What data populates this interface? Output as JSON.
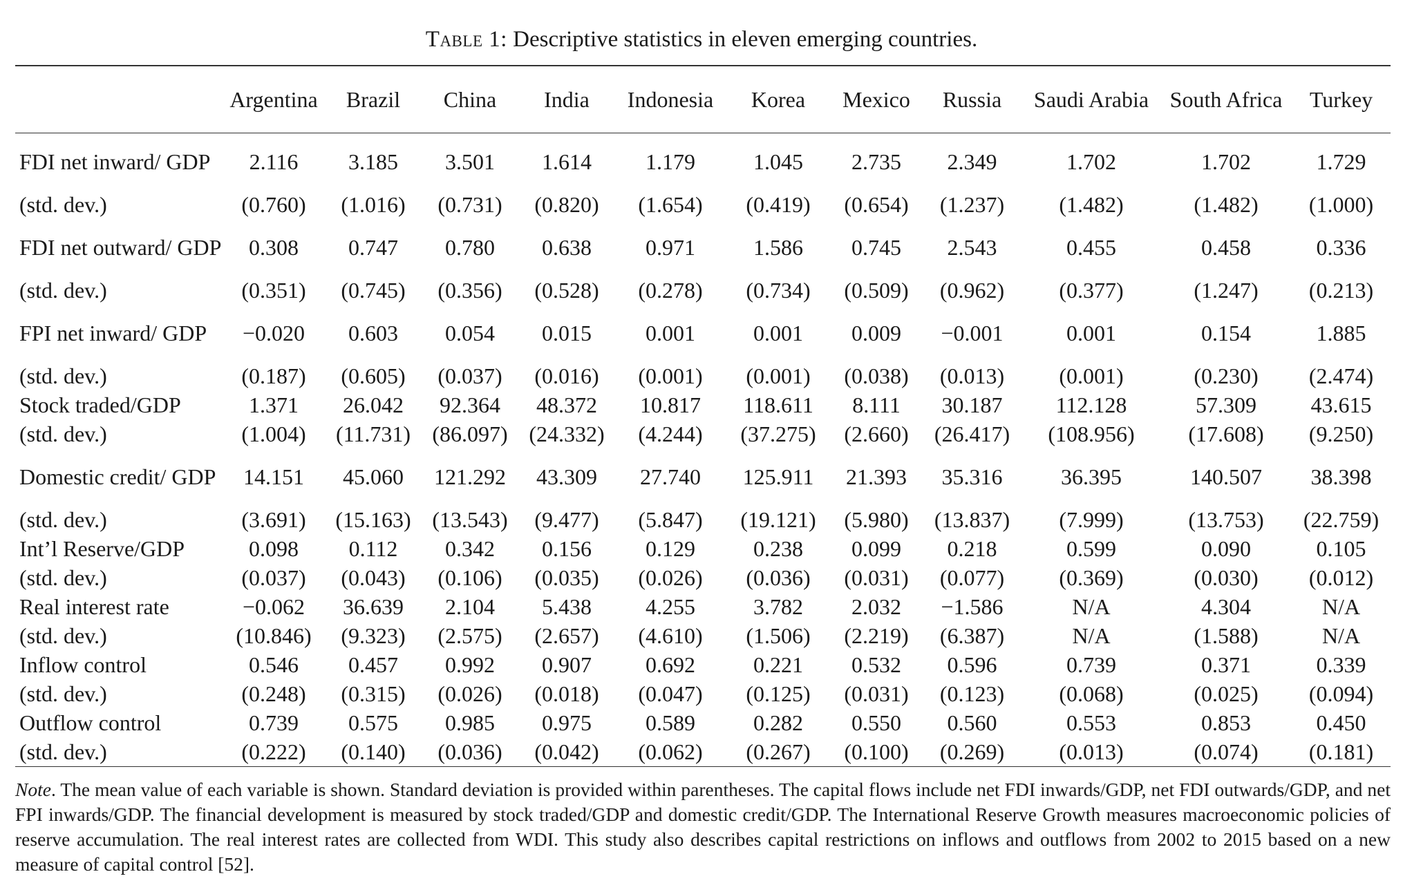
{
  "caption": {
    "label": "Table 1:",
    "text": "Descriptive statistics in eleven emerging countries."
  },
  "table": {
    "columns": [
      "",
      "Argentina",
      "Brazil",
      "China",
      "India",
      "Indonesia",
      "Korea",
      "Mexico",
      "Russia",
      "Saudi Arabia",
      "South Africa",
      "Turkey"
    ],
    "rows": [
      {
        "label": "FDI net inward/ GDP",
        "values": [
          "2.116",
          "3.185",
          "3.501",
          "1.614",
          "1.179",
          "1.045",
          "2.735",
          "2.349",
          "1.702",
          "1.702",
          "1.729"
        ]
      },
      {
        "label": "(std. dev.)",
        "values": [
          "(0.760)",
          "(1.016)",
          "(0.731)",
          "(0.820)",
          "(1.654)",
          "(0.419)",
          "(0.654)",
          "(1.237)",
          "(1.482)",
          "(1.482)",
          "(1.000)"
        ]
      },
      {
        "label": "FDI net outward/ GDP",
        "values": [
          "0.308",
          "0.747",
          "0.780",
          "0.638",
          "0.971",
          "1.586",
          "0.745",
          "2.543",
          "0.455",
          "0.458",
          "0.336"
        ]
      },
      {
        "label": "(std. dev.)",
        "values": [
          "(0.351)",
          "(0.745)",
          "(0.356)",
          "(0.528)",
          "(0.278)",
          "(0.734)",
          "(0.509)",
          "(0.962)",
          "(0.377)",
          "(1.247)",
          "(0.213)"
        ]
      },
      {
        "label": "FPI net inward/ GDP",
        "values": [
          "−0.020",
          "0.603",
          "0.054",
          "0.015",
          "0.001",
          "0.001",
          "0.009",
          "−0.001",
          "0.001",
          "0.154",
          "1.885"
        ]
      },
      {
        "label": "(std. dev.)",
        "values": [
          "(0.187)",
          "(0.605)",
          "(0.037)",
          "(0.016)",
          "(0.001)",
          "(0.001)",
          "(0.038)",
          "(0.013)",
          "(0.001)",
          "(0.230)",
          "(2.474)"
        ]
      },
      {
        "label": "Stock traded/GDP",
        "values": [
          "1.371",
          "26.042",
          "92.364",
          "48.372",
          "10.817",
          "118.611",
          "8.111",
          "30.187",
          "112.128",
          "57.309",
          "43.615"
        ]
      },
      {
        "label": "(std. dev.)",
        "values": [
          "(1.004)",
          "(11.731)",
          "(86.097)",
          "(24.332)",
          "(4.244)",
          "(37.275)",
          "(2.660)",
          "(26.417)",
          "(108.956)",
          "(17.608)",
          "(9.250)"
        ]
      },
      {
        "label": "Domestic credit/ GDP",
        "values": [
          "14.151",
          "45.060",
          "121.292",
          "43.309",
          "27.740",
          "125.911",
          "21.393",
          "35.316",
          "36.395",
          "140.507",
          "38.398"
        ]
      },
      {
        "label": "(std. dev.)",
        "values": [
          "(3.691)",
          "(15.163)",
          "(13.543)",
          "(9.477)",
          "(5.847)",
          "(19.121)",
          "(5.980)",
          "(13.837)",
          "(7.999)",
          "(13.753)",
          "(22.759)"
        ]
      },
      {
        "label": "Int’l Reserve/GDP",
        "values": [
          "0.098",
          "0.112",
          "0.342",
          "0.156",
          "0.129",
          "0.238",
          "0.099",
          "0.218",
          "0.599",
          "0.090",
          "0.105"
        ]
      },
      {
        "label": "(std. dev.)",
        "values": [
          "(0.037)",
          "(0.043)",
          "(0.106)",
          "(0.035)",
          "(0.026)",
          "(0.036)",
          "(0.031)",
          "(0.077)",
          "(0.369)",
          "(0.030)",
          "(0.012)"
        ]
      },
      {
        "label": "Real interest rate",
        "values": [
          "−0.062",
          "36.639",
          "2.104",
          "5.438",
          "4.255",
          "3.782",
          "2.032",
          "−1.586",
          "N/A",
          "4.304",
          "N/A"
        ]
      },
      {
        "label": "(std. dev.)",
        "values": [
          "(10.846)",
          "(9.323)",
          "(2.575)",
          "(2.657)",
          "(4.610)",
          "(1.506)",
          "(2.219)",
          "(6.387)",
          "N/A",
          "(1.588)",
          "N/A"
        ]
      },
      {
        "label": "Inflow control",
        "values": [
          "0.546",
          "0.457",
          "0.992",
          "0.907",
          "0.692",
          "0.221",
          "0.532",
          "0.596",
          "0.739",
          "0.371",
          "0.339"
        ]
      },
      {
        "label": "(std. dev.)",
        "values": [
          "(0.248)",
          "(0.315)",
          "(0.026)",
          "(0.018)",
          "(0.047)",
          "(0.125)",
          "(0.031)",
          "(0.123)",
          "(0.068)",
          "(0.025)",
          "(0.094)"
        ]
      },
      {
        "label": "Outflow control",
        "values": [
          "0.739",
          "0.575",
          "0.985",
          "0.975",
          "0.589",
          "0.282",
          "0.550",
          "0.560",
          "0.553",
          "0.853",
          "0.450"
        ]
      },
      {
        "label": "(std. dev.)",
        "values": [
          "(0.222)",
          "(0.140)",
          "(0.036)",
          "(0.042)",
          "(0.062)",
          "(0.267)",
          "(0.100)",
          "(0.269)",
          "(0.013)",
          "(0.074)",
          "(0.181)"
        ]
      }
    ]
  },
  "note": {
    "label": "Note",
    "text": ". The mean value of each variable is shown. Standard deviation is provided within parentheses. The capital flows include net FDI inwards/GDP, net FDI outwards/GDP, and net FPI inwards/GDP. The financial development is measured by stock traded/GDP and domestic credit/GDP. The International Reserve Growth measures macroeconomic policies of reserve accumulation. The real interest rates are collected from WDI. This study also describes capital restrictions on inflows and outflows from 2002 to 2015 based on a new measure of capital control [52]."
  }
}
